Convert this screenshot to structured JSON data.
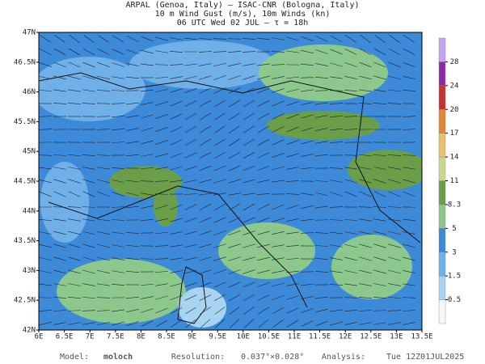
{
  "header": {
    "lines": [
      "ARPAL (Genoa, Italy)  –  ISAC-CNR (Bologna, Italy)",
      "10 m Wind Gust (m/s), 10m Winds (kn)",
      "06 UTC Wed 02 JUL  –  τ = 18h"
    ]
  },
  "map": {
    "lat_labels": [
      "47N",
      "46.5N",
      "46N",
      "45.5N",
      "45N",
      "44.5N",
      "44N",
      "43.5N",
      "43N",
      "42.5N",
      "42N"
    ],
    "lon_labels": [
      "6E",
      "6.5E",
      "7E",
      "7.5E",
      "8E",
      "8.5E",
      "9E",
      "9.5E",
      "10E",
      "10.5E",
      "11E",
      "11.5E",
      "12E",
      "12.5E",
      "13E",
      "13.5E"
    ]
  },
  "colorbar": {
    "levels": [
      0.5,
      1.5,
      3,
      5,
      8.3,
      11,
      14,
      17,
      20,
      24,
      28
    ],
    "colors": [
      "#f4f8fc",
      "#a8d4f2",
      "#6fb0e8",
      "#3c8ad8",
      "#8cc88c",
      "#6a9e48",
      "#c8d890",
      "#e8c070",
      "#e08838",
      "#c83232",
      "#8a2caa",
      "#c4a4ec"
    ]
  },
  "footer": [
    {
      "label": "Model:",
      "value": "moloch"
    },
    {
      "label": "Resolution:",
      "value": "0.037°×0.028°"
    },
    {
      "label": "Analysis:",
      "value": "Tue 12Z01JUL2025"
    }
  ]
}
